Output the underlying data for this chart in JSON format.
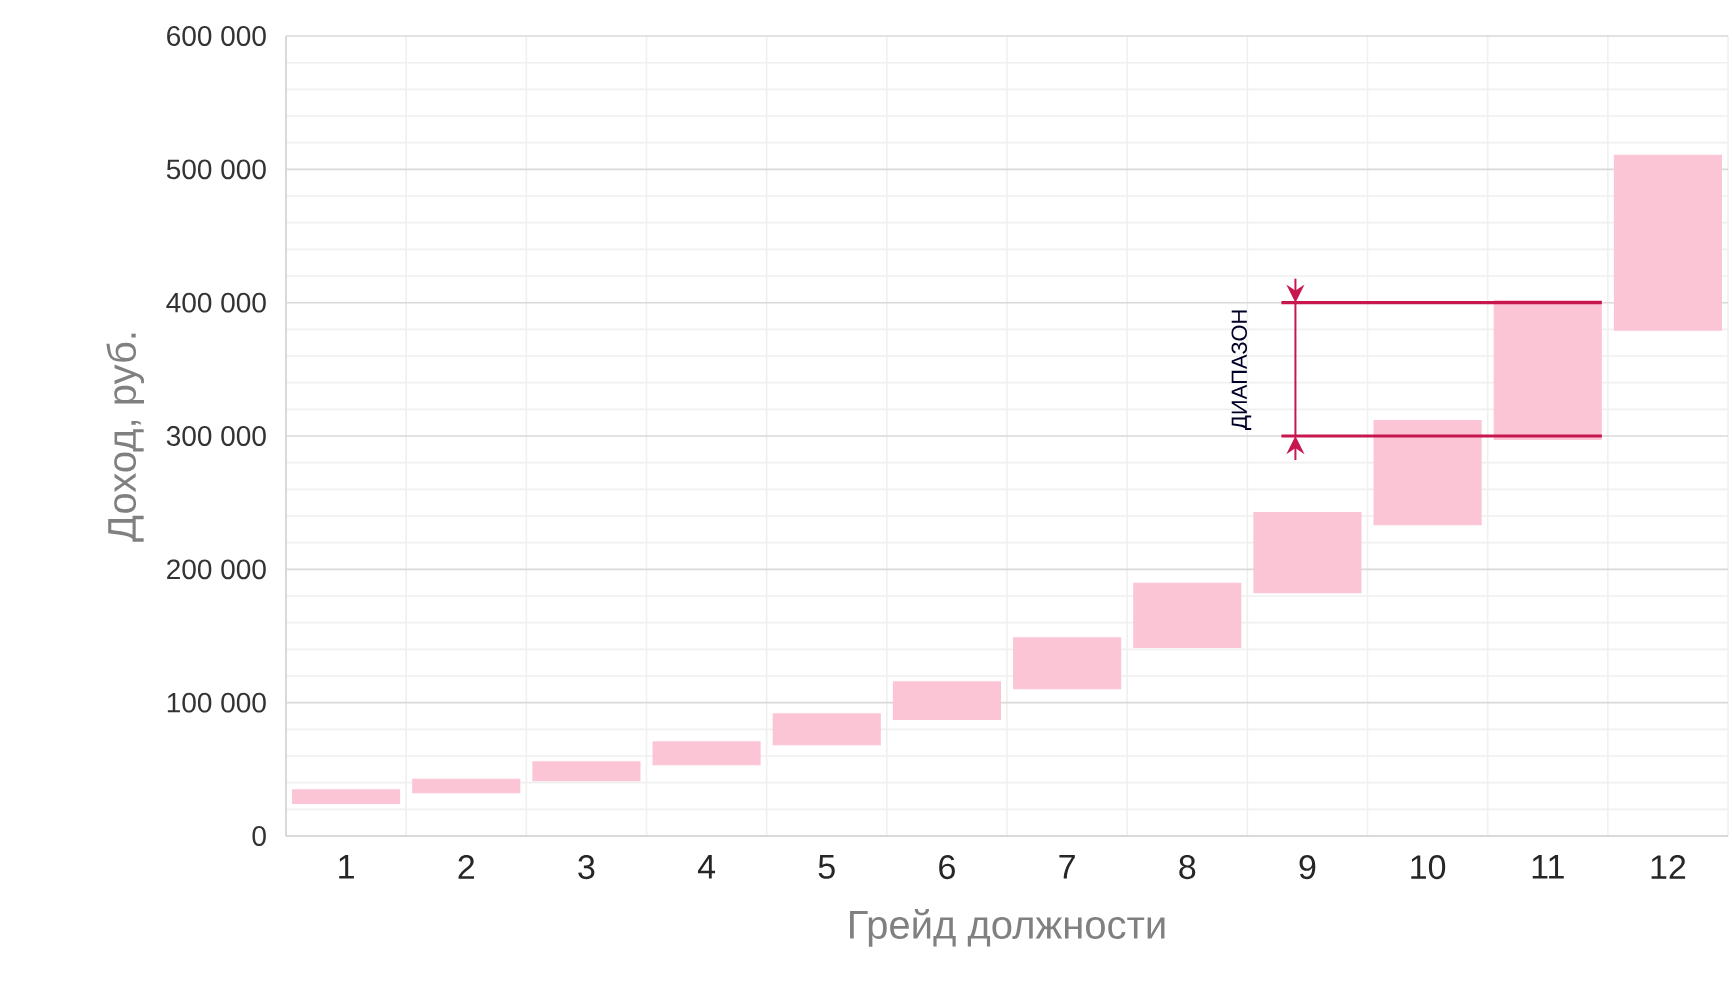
{
  "chart_data": {
    "type": "bar",
    "xlabel": "Грейд должности",
    "ylabel": "Доход, руб.",
    "categories": [
      "1",
      "2",
      "3",
      "4",
      "5",
      "6",
      "7",
      "8",
      "9",
      "10",
      "11",
      "12"
    ],
    "base": [
      24000,
      32000,
      41000,
      53000,
      68000,
      87000,
      110000,
      141000,
      182000,
      233000,
      297000,
      379000
    ],
    "values": [
      11000,
      11000,
      15000,
      18000,
      24000,
      29000,
      39000,
      49000,
      61000,
      79000,
      105000,
      132000
    ],
    "color": "#fcc5d6",
    "ylim": [
      0,
      600000
    ],
    "yticks": [
      {
        "value": 0,
        "label": "0"
      },
      {
        "value": 100000,
        "label": "100 000"
      },
      {
        "value": 200000,
        "label": "200 000"
      },
      {
        "value": 300000,
        "label": "300 000"
      },
      {
        "value": 400000,
        "label": "400 000"
      },
      {
        "value": 500000,
        "label": "500 000"
      },
      {
        "value": 600000,
        "label": "600 000"
      }
    ],
    "grid": true,
    "ref_lines": [
      {
        "axis": "y",
        "value": 400000,
        "color": "#c8174f"
      },
      {
        "axis": "y",
        "value": 300000,
        "color": "#c8174f"
      }
    ],
    "annotations": [
      "ДИАПАЗОН"
    ]
  }
}
